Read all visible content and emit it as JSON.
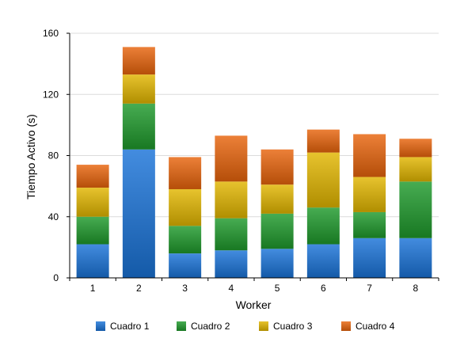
{
  "chart_data": {
    "type": "bar",
    "stacked": true,
    "categories": [
      "1",
      "2",
      "3",
      "4",
      "5",
      "6",
      "7",
      "8"
    ],
    "series": [
      {
        "name": "Cuadro 1",
        "values": [
          22,
          84,
          16,
          18,
          19,
          22,
          26,
          26
        ],
        "color": "#1a73d8"
      },
      {
        "name": "Cuadro 2",
        "values": [
          18,
          30,
          18,
          21,
          23,
          24,
          17,
          37
        ],
        "color": "#1f9a2c"
      },
      {
        "name": "Cuadro 3",
        "values": [
          19,
          19,
          24,
          24,
          19,
          36,
          23,
          16
        ],
        "color": "#e2b600"
      },
      {
        "name": "Cuadro 4",
        "values": [
          15,
          18,
          21,
          30,
          23,
          15,
          28,
          12
        ],
        "color": "#e8640c"
      }
    ],
    "title": "",
    "xlabel": "Worker",
    "ylabel": "Tiempo Activo (s)",
    "ylim": [
      0,
      160
    ],
    "yticks": [
      0,
      40,
      80,
      120,
      160
    ],
    "grid": true,
    "legend_position": "bottom"
  }
}
